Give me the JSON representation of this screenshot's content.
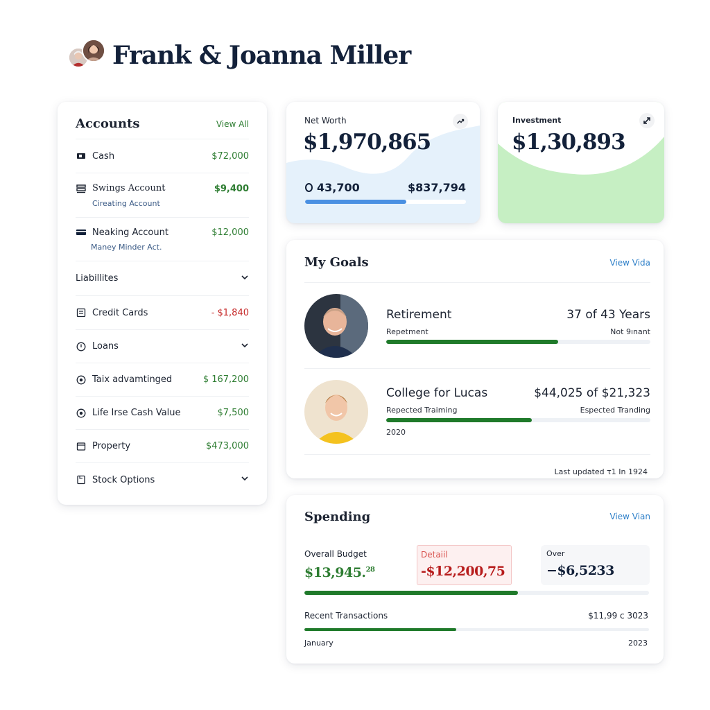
{
  "header": {
    "title": "Frank & Joanna Miller"
  },
  "accounts": {
    "title": "Accounts",
    "view_all": "View All",
    "rows": [
      {
        "icon": "cash-icon",
        "label": "Cash",
        "value": "$72,000",
        "tone": "pos"
      },
      {
        "icon": "savings-icon",
        "label": "Swings Account",
        "sub": "Cireating Account",
        "value": "$9,400",
        "tone": "pos-bold"
      },
      {
        "icon": "card-icon",
        "label": "Neaking Account",
        "sub": "Maney Minder Act.",
        "value": "$12,000",
        "tone": "pos"
      },
      {
        "label": "Liabillites",
        "chevron": true
      },
      {
        "icon": "credit-card-icon",
        "label": "Credit Cards",
        "value": "- $1,840",
        "tone": "neg"
      },
      {
        "icon": "clock-icon",
        "label": "Loans",
        "chevron": true
      },
      {
        "icon": "target-icon",
        "label": "Taix advamtinged",
        "value": "$ 167,200",
        "tone": "pos"
      },
      {
        "icon": "target-icon",
        "label": "Life Irse Cash Value",
        "value": "$7,500",
        "tone": "pos"
      },
      {
        "icon": "window-icon",
        "label": "Property",
        "value": "$473,000",
        "tone": "pos"
      },
      {
        "icon": "document-icon",
        "label": "Stock Options",
        "chevron": true
      }
    ]
  },
  "net_worth": {
    "label": "Net Worth",
    "value": "$1,970,865",
    "left_value": "43,700",
    "right_value": "$837,794",
    "progress": 0.63,
    "bar_color": "#4a90e2"
  },
  "investment": {
    "label": "Investment",
    "value": "$1,30,893"
  },
  "goals": {
    "title": "My Goals",
    "view_link": "View Vida",
    "items": [
      {
        "title": "Retirement",
        "amount": "37 of 43 Years",
        "sub_left": "Repetment",
        "sub_right": "Not 9ınant",
        "progress": 0.65,
        "extra": ""
      },
      {
        "title": "College for Lucas",
        "amount": "$44,025 of $21,323",
        "sub_left": "Repected Traiming",
        "sub_right": "Espected Tranding",
        "progress": 0.55,
        "extra": "2020"
      }
    ],
    "last_updated": "Last updated τ1 In 1924"
  },
  "spending": {
    "title": "Spending",
    "view_link": "View Vian",
    "overall_label": "Overall Budget",
    "overall_value": "$13,945.",
    "overall_cents": "28",
    "detail_label": "Detaiil",
    "detail_value": "-$12,200,75",
    "over_label": "Over",
    "over_value": "−$6,5233",
    "budget_progress": 0.62,
    "recent_label": "Recent Transactions",
    "recent_value": "$11,99 с 3023",
    "recent_progress": 0.44,
    "foot_left": "January",
    "foot_right": "2023"
  },
  "colors": {
    "positive": "#2e7d32",
    "negative": "#c62828",
    "link": "#2d7fc8",
    "net_worth_bg": "#e5f1fb",
    "investment_bg": "#c6efc3",
    "progress_green": "#1f7a2a"
  }
}
